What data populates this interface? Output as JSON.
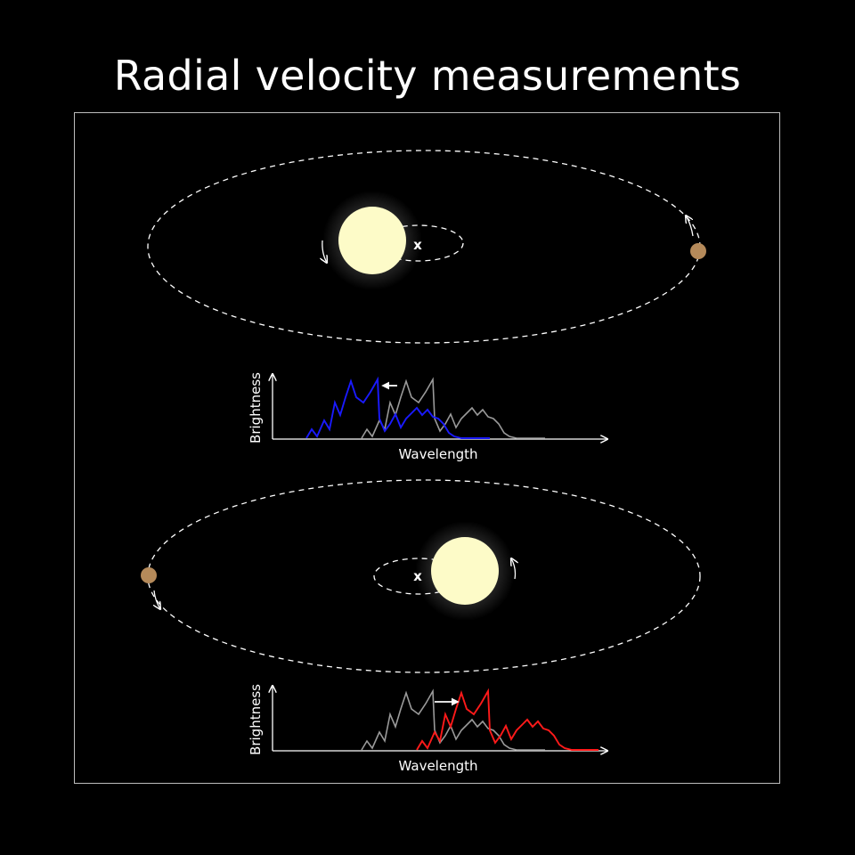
{
  "title": "Radial velocity measurements",
  "panels": [
    {
      "spectrum": {
        "ylabel": "Brightness",
        "xlabel": "Wavelength",
        "shift": "blue",
        "shift_color": "#1a1aff",
        "reference_color": "#9a9a9a"
      },
      "barycenter_marker": "x"
    },
    {
      "spectrum": {
        "ylabel": "Brightness",
        "xlabel": "Wavelength",
        "shift": "red",
        "shift_color": "#ff1a1a",
        "reference_color": "#9a9a9a"
      },
      "barycenter_marker": "x"
    }
  ],
  "colors": {
    "background": "#000000",
    "star": "#fdfbc8",
    "planet": "#b58a5a",
    "orbit": "#ffffff",
    "frame": "#bdbdbd"
  }
}
